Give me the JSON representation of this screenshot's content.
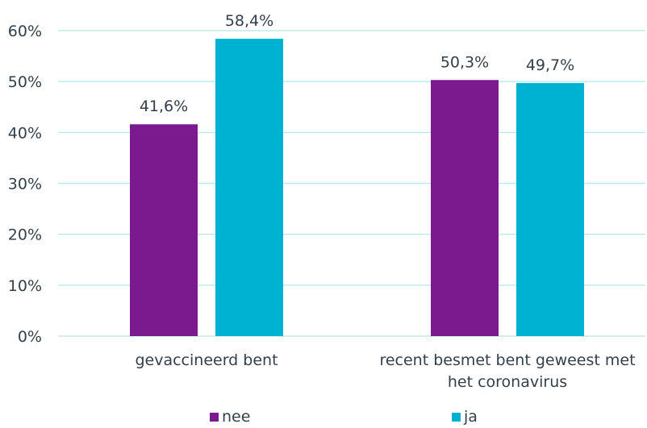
{
  "chart_data": {
    "type": "bar",
    "categories": [
      [
        "gevaccineerd bent"
      ],
      [
        "recent besmet bent geweest met",
        "het coronavirus"
      ]
    ],
    "series": [
      {
        "name": "nee",
        "color": "#7b1a8e",
        "values": [
          41.6,
          50.3
        ],
        "labels": [
          "41,6%",
          "50,3%"
        ]
      },
      {
        "name": "ja",
        "color": "#00b2d1",
        "values": [
          58.4,
          49.7
        ],
        "labels": [
          "58,4%",
          "49,7%"
        ]
      }
    ],
    "yticks": [
      "0%",
      "10%",
      "20%",
      "30%",
      "40%",
      "50%",
      "60%"
    ],
    "ylim": [
      0,
      60
    ],
    "grid": true,
    "grid_color": "#bfe9f1",
    "legend_position": "bottom"
  }
}
